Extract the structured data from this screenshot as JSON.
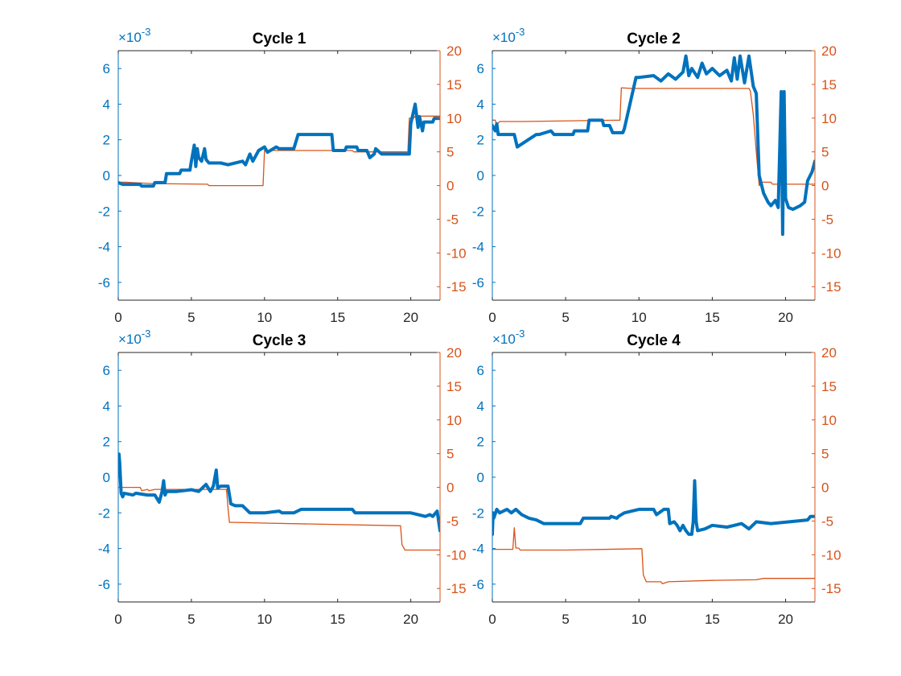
{
  "colors": {
    "left_axis": "#0072BD",
    "right_axis": "#D95319",
    "x_axis": "#262626",
    "title": "#000000"
  },
  "chart_data": [
    {
      "type": "line",
      "title": "Cycle 1",
      "xlim": [
        0,
        22
      ],
      "ylim_left": [
        -7,
        7
      ],
      "ylim_right": [
        -17,
        20
      ],
      "left_exponent_label": "×10",
      "left_exponent": "-3",
      "x_ticks": [
        "0",
        "5",
        "10",
        "15",
        "20"
      ],
      "left_ticks": [
        "-6",
        "-4",
        "-2",
        "0",
        "2",
        "4",
        "6"
      ],
      "right_ticks": [
        "-15",
        "-10",
        "-5",
        "0",
        "5",
        "10",
        "15",
        "20"
      ],
      "series_left": {
        "axis": "left",
        "x": [
          0,
          0.3,
          1.5,
          1.6,
          2.4,
          2.5,
          3.2,
          3.3,
          4.2,
          4.3,
          4.9,
          5.0,
          5.2,
          5.3,
          5.4,
          5.5,
          5.7,
          5.9,
          6.0,
          6.2,
          7.0,
          7.5,
          8.5,
          8.7,
          9.0,
          9.2,
          9.6,
          10.0,
          10.2,
          10.8,
          11.0,
          12.0,
          12.3,
          12.5,
          14.6,
          14.7,
          15.5,
          15.6,
          16.3,
          16.4,
          17.0,
          17.2,
          17.5,
          17.6,
          18.0,
          19.9,
          20.0,
          20.3,
          20.5,
          20.6,
          20.8,
          20.9,
          21.5,
          21.6,
          22.0
        ],
        "y": [
          -0.4,
          -0.5,
          -0.5,
          -0.6,
          -0.6,
          -0.4,
          -0.4,
          0.1,
          0.1,
          0.3,
          0.3,
          0.8,
          1.7,
          0.5,
          1.5,
          1.0,
          0.8,
          1.5,
          0.9,
          0.7,
          0.7,
          0.6,
          0.8,
          0.6,
          1.2,
          0.8,
          1.4,
          1.6,
          1.3,
          1.6,
          1.5,
          1.5,
          2.3,
          2.3,
          2.3,
          1.4,
          1.4,
          1.6,
          1.6,
          1.4,
          1.4,
          1.0,
          1.2,
          1.5,
          1.2,
          1.2,
          2.9,
          4.0,
          2.7,
          3.3,
          2.5,
          3.0,
          3.0,
          3.2,
          3.2
        ]
      },
      "series_right": {
        "axis": "right",
        "x": [
          0,
          0.5,
          2.3,
          2.4,
          6.1,
          6.2,
          9.9,
          10.0,
          16.0,
          16.1,
          19.8,
          19.9,
          20.2,
          20.3,
          22.0
        ],
        "y": [
          0.5,
          0.5,
          0.3,
          0.3,
          0.2,
          0.0,
          0.0,
          5.2,
          5.2,
          5.0,
          5.0,
          10.0,
          10.0,
          10.3,
          10.3
        ]
      }
    },
    {
      "type": "line",
      "title": "Cycle 2",
      "xlim": [
        0,
        22
      ],
      "ylim_left": [
        -7,
        7
      ],
      "ylim_right": [
        -17,
        20
      ],
      "left_exponent_label": "×10",
      "left_exponent": "-3",
      "x_ticks": [
        "0",
        "5",
        "10",
        "15",
        "20"
      ],
      "left_ticks": [
        "-6",
        "-4",
        "-2",
        "0",
        "2",
        "4",
        "6"
      ],
      "right_ticks": [
        "-15",
        "-10",
        "-5",
        "0",
        "5",
        "10",
        "15",
        "20"
      ],
      "series_left": {
        "axis": "left",
        "x": [
          0,
          0.2,
          0.3,
          0.4,
          1.5,
          1.7,
          3.0,
          3.2,
          4.0,
          4.2,
          5.5,
          5.6,
          6.5,
          6.6,
          7.5,
          7.6,
          8.0,
          8.2,
          8.9,
          9.0,
          9.8,
          10.0,
          11.0,
          11.5,
          12.0,
          12.5,
          13.0,
          13.2,
          13.4,
          13.6,
          14.0,
          14.3,
          14.6,
          15.0,
          15.5,
          16.0,
          16.3,
          16.5,
          16.7,
          16.9,
          17.2,
          17.5,
          17.8,
          18.0,
          18.2,
          18.5,
          18.8,
          19.0,
          19.3,
          19.5,
          19.7,
          19.8,
          19.9,
          20.0,
          20.2,
          20.5,
          21.0,
          21.3,
          21.5,
          21.8,
          22.0
        ],
        "y": [
          2.8,
          2.5,
          2.9,
          2.3,
          2.3,
          1.6,
          2.3,
          2.3,
          2.5,
          2.3,
          2.3,
          2.5,
          2.5,
          3.1,
          3.1,
          2.8,
          2.8,
          2.4,
          2.4,
          2.6,
          5.5,
          5.5,
          5.6,
          5.3,
          5.7,
          5.4,
          5.8,
          6.7,
          5.6,
          6.0,
          5.5,
          6.3,
          5.7,
          6.0,
          5.6,
          5.9,
          5.3,
          6.6,
          5.4,
          6.7,
          5.2,
          6.7,
          5.0,
          4.6,
          0.0,
          -1.0,
          -1.5,
          -1.7,
          -1.4,
          -1.8,
          4.7,
          -3.3,
          4.7,
          -1.3,
          -1.8,
          -1.9,
          -1.7,
          -1.5,
          -0.3,
          0.2,
          0.8
        ]
      },
      "series_right": {
        "axis": "right",
        "x": [
          0,
          0.2,
          0.3,
          0.5,
          2.0,
          8.7,
          8.8,
          9.5,
          15.0,
          17.5,
          17.6,
          17.8,
          18.0,
          18.2,
          18.3,
          19.0,
          19.1,
          22.0
        ],
        "y": [
          9.7,
          9.7,
          9.0,
          9.5,
          9.5,
          9.7,
          14.5,
          14.4,
          14.4,
          14.4,
          14.0,
          10.5,
          5.0,
          0.0,
          0.5,
          0.5,
          0.2,
          0.2
        ]
      }
    },
    {
      "type": "line",
      "title": "Cycle 3",
      "xlim": [
        0,
        22
      ],
      "ylim_left": [
        -7,
        7
      ],
      "ylim_right": [
        -17,
        20
      ],
      "left_exponent_label": "×10",
      "left_exponent": "-3",
      "x_ticks": [
        "0",
        "5",
        "10",
        "15",
        "20"
      ],
      "left_ticks": [
        "-6",
        "-4",
        "-2",
        "0",
        "2",
        "4",
        "6"
      ],
      "right_ticks": [
        "-15",
        "-10",
        "-5",
        "0",
        "5",
        "10",
        "15",
        "20"
      ],
      "series_left": {
        "axis": "left",
        "x": [
          0.05,
          0.1,
          0.2,
          0.3,
          0.4,
          1.0,
          1.2,
          2.0,
          2.5,
          2.8,
          3.0,
          3.1,
          3.2,
          3.3,
          4.0,
          5.0,
          5.5,
          6.0,
          6.3,
          6.5,
          6.7,
          6.8,
          7.0,
          7.5,
          7.7,
          8.0,
          8.5,
          9.0,
          10.0,
          11.0,
          11.2,
          12.0,
          12.5,
          13.0,
          16.0,
          16.2,
          17.0,
          18.0,
          20.0,
          21.0,
          21.3,
          21.5,
          21.8,
          22.0
        ],
        "y": [
          1.3,
          0.8,
          -0.9,
          -1.1,
          -0.9,
          -1.0,
          -0.9,
          -1.0,
          -1.0,
          -1.4,
          -0.8,
          -0.2,
          -1.0,
          -0.8,
          -0.8,
          -0.7,
          -0.8,
          -0.4,
          -0.8,
          -0.5,
          0.4,
          -0.6,
          -0.5,
          -0.5,
          -1.5,
          -1.6,
          -1.6,
          -2.0,
          -2.0,
          -1.9,
          -2.0,
          -2.0,
          -1.8,
          -1.8,
          -1.8,
          -2.0,
          -2.0,
          -2.0,
          -2.0,
          -2.2,
          -2.1,
          -2.2,
          -1.9,
          -3.0
        ]
      },
      "series_right": {
        "axis": "right",
        "x": [
          0,
          1.5,
          1.6,
          2.0,
          2.1,
          2.5,
          7.4,
          7.5,
          7.6,
          8.0,
          10.0,
          19.3,
          19.4,
          19.6,
          20.0,
          22.0
        ],
        "y": [
          0.0,
          0.0,
          -0.5,
          -0.3,
          -0.5,
          -0.3,
          -0.3,
          -3.0,
          -5.2,
          -5.2,
          -5.3,
          -5.7,
          -8.5,
          -9.3,
          -9.3,
          -9.3
        ]
      }
    },
    {
      "type": "line",
      "title": "Cycle 4",
      "xlim": [
        0,
        22
      ],
      "ylim_left": [
        -7,
        7
      ],
      "ylim_right": [
        -17,
        20
      ],
      "left_exponent_label": "×10",
      "left_exponent": "-3",
      "x_ticks": [
        "0",
        "5",
        "10",
        "15",
        "20"
      ],
      "left_ticks": [
        "-6",
        "-4",
        "-2",
        "0",
        "2",
        "4",
        "6"
      ],
      "right_ticks": [
        "-15",
        "-10",
        "-5",
        "0",
        "5",
        "10",
        "15",
        "20"
      ],
      "series_left": {
        "axis": "left",
        "x": [
          0,
          0.05,
          0.1,
          0.3,
          0.5,
          1.0,
          1.3,
          1.6,
          2.0,
          2.5,
          3.0,
          3.5,
          4.0,
          6.0,
          6.2,
          8.0,
          8.1,
          8.5,
          8.6,
          9.0,
          10.0,
          11.0,
          11.2,
          11.7,
          12.0,
          12.1,
          12.4,
          12.6,
          12.8,
          13.0,
          13.2,
          13.4,
          13.6,
          13.7,
          13.8,
          13.9,
          14.0,
          14.5,
          15.0,
          16.0,
          16.5,
          17.0,
          17.5,
          18.0,
          19.0,
          21.5,
          21.7,
          22.0
        ],
        "y": [
          -3.2,
          -2.0,
          -2.3,
          -1.8,
          -2.0,
          -1.8,
          -2.0,
          -1.8,
          -2.1,
          -2.3,
          -2.4,
          -2.6,
          -2.6,
          -2.6,
          -2.3,
          -2.3,
          -2.2,
          -2.3,
          -2.2,
          -2.0,
          -1.8,
          -1.8,
          -2.1,
          -1.8,
          -1.8,
          -2.6,
          -2.5,
          -2.7,
          -3.0,
          -2.7,
          -3.0,
          -3.2,
          -3.2,
          -2.5,
          -0.2,
          -2.5,
          -3.0,
          -2.9,
          -2.7,
          -2.8,
          -2.7,
          -2.6,
          -2.9,
          -2.5,
          -2.6,
          -2.4,
          -2.2,
          -2.2
        ]
      },
      "series_right": {
        "axis": "right",
        "x": [
          0,
          1.4,
          1.5,
          1.6,
          1.8,
          1.9,
          5.0,
          10.2,
          10.3,
          10.5,
          11.5,
          11.6,
          12.0,
          15.0,
          18.0,
          18.5,
          22.0
        ],
        "y": [
          -9.2,
          -9.2,
          -6.0,
          -9.0,
          -9.0,
          -9.3,
          -9.3,
          -9.1,
          -13.0,
          -14.0,
          -14.0,
          -14.3,
          -14.0,
          -13.8,
          -13.7,
          -13.5,
          -13.5
        ]
      }
    }
  ]
}
